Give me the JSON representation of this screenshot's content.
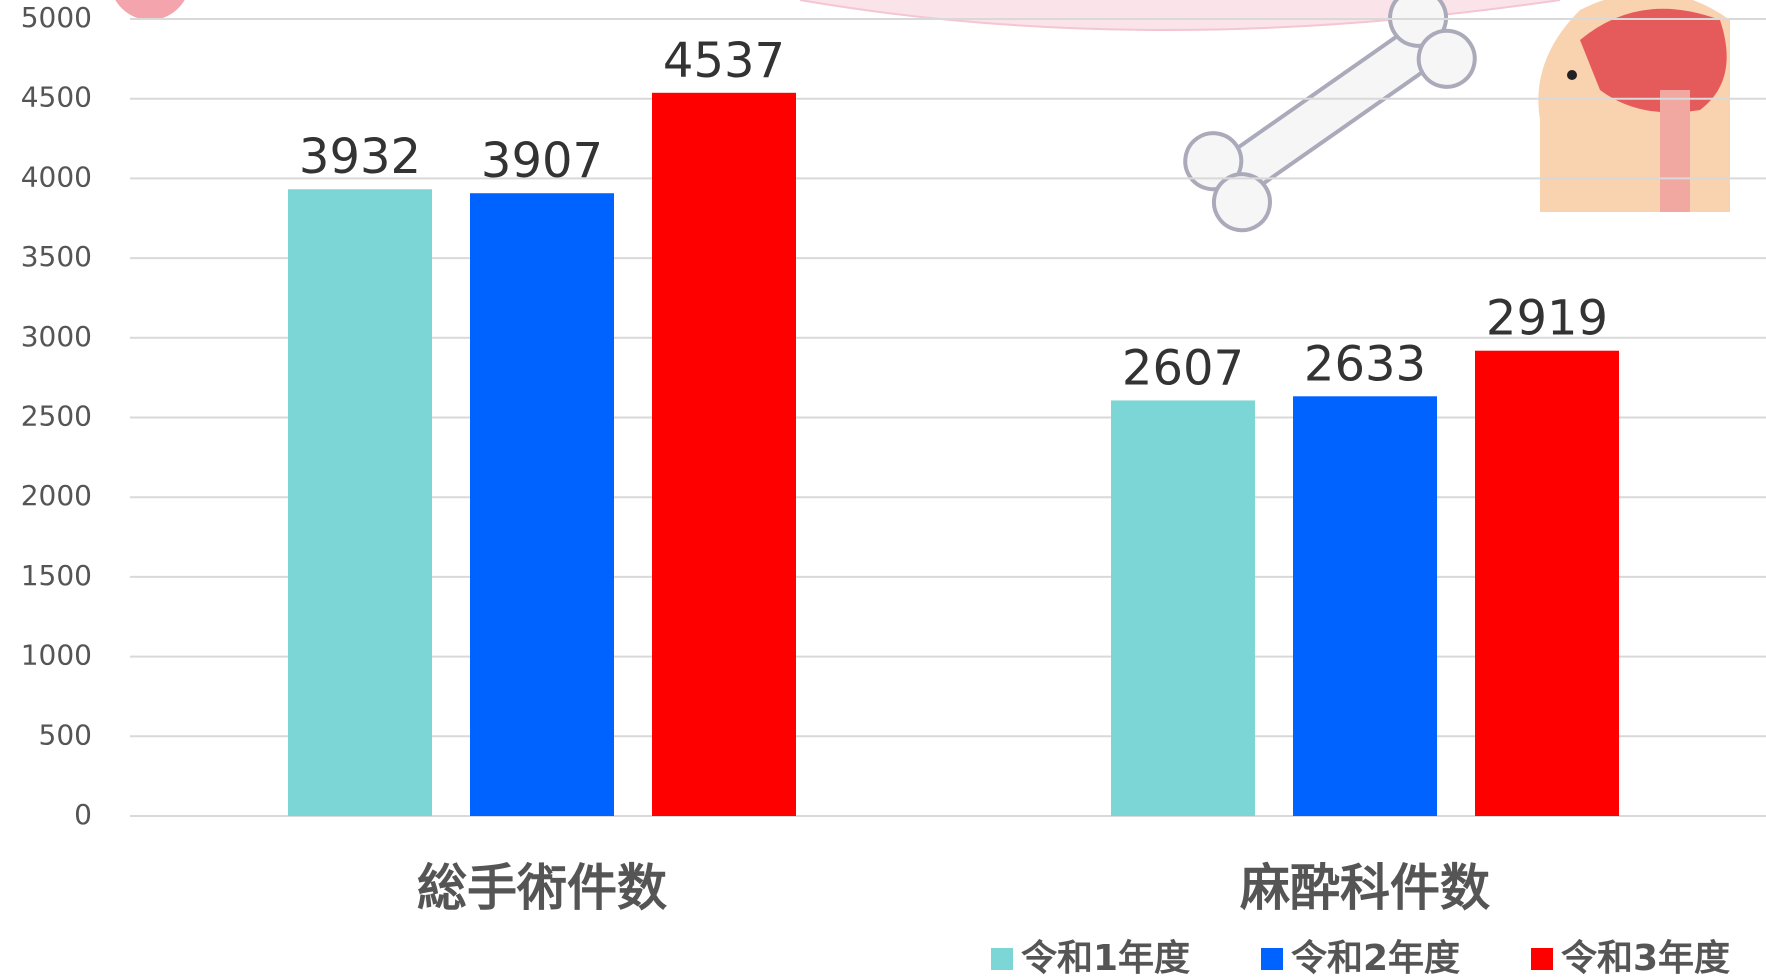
{
  "chart_data": {
    "type": "bar",
    "categories": [
      "総手術件数",
      "麻酔科件数"
    ],
    "series": [
      {
        "name": "令和1年度",
        "color": "#7dd6d6",
        "values": [
          3932,
          2607
        ]
      },
      {
        "name": "令和2年度",
        "color": "#0063ff",
        "values": [
          3907,
          2633
        ]
      },
      {
        "name": "令和3年度",
        "color": "#ff0000",
        "values": [
          4537,
          2919
        ]
      }
    ],
    "ylim": [
      0,
      5000
    ],
    "yticks": [
      0,
      500,
      1000,
      1500,
      2000,
      2500,
      3000,
      3500,
      4000,
      4500,
      5000
    ],
    "grid": true
  }
}
